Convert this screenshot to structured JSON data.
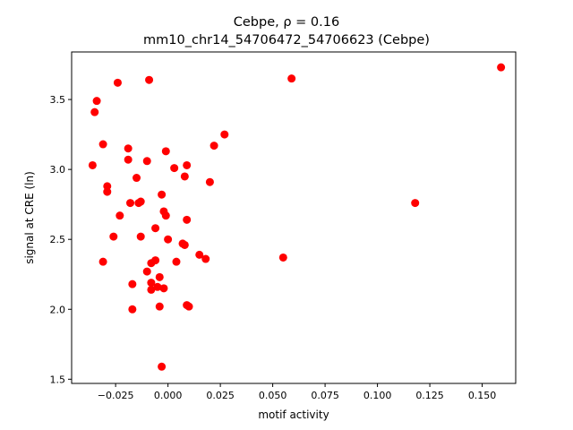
{
  "chart_data": {
    "type": "scatter",
    "title_line1": "Cebpe, ρ = 0.16",
    "title_line2": "mm10_chr14_54706472_54706623 (Cebpe)",
    "xlabel": "motif activity",
    "ylabel": "signal at CRE (ln)",
    "xlim": [
      -0.046,
      0.166
    ],
    "ylim": [
      1.47,
      3.84
    ],
    "xticks": [
      {
        "value": -0.025,
        "label": "−0.025"
      },
      {
        "value": 0.0,
        "label": "0.000"
      },
      {
        "value": 0.025,
        "label": "0.025"
      },
      {
        "value": 0.05,
        "label": "0.050"
      },
      {
        "value": 0.075,
        "label": "0.075"
      },
      {
        "value": 0.1,
        "label": "0.100"
      },
      {
        "value": 0.125,
        "label": "0.125"
      },
      {
        "value": 0.15,
        "label": "0.150"
      }
    ],
    "yticks": [
      {
        "value": 1.5,
        "label": "1.5"
      },
      {
        "value": 2.0,
        "label": "2.0"
      },
      {
        "value": 2.5,
        "label": "2.5"
      },
      {
        "value": 3.0,
        "label": "3.0"
      },
      {
        "value": 3.5,
        "label": "3.5"
      }
    ],
    "grid": false,
    "marker_color": "#ff0000",
    "points": [
      {
        "x": 0.159,
        "y": 3.73
      },
      {
        "x": 0.059,
        "y": 3.65
      },
      {
        "x": 0.118,
        "y": 2.76
      },
      {
        "x": 0.055,
        "y": 2.37
      },
      {
        "x": -0.034,
        "y": 3.49
      },
      {
        "x": -0.035,
        "y": 3.41
      },
      {
        "x": -0.024,
        "y": 3.62
      },
      {
        "x": -0.009,
        "y": 3.64
      },
      {
        "x": -0.031,
        "y": 3.18
      },
      {
        "x": -0.036,
        "y": 3.03
      },
      {
        "x": -0.019,
        "y": 3.15
      },
      {
        "x": -0.019,
        "y": 3.07
      },
      {
        "x": -0.01,
        "y": 3.06
      },
      {
        "x": -0.001,
        "y": 3.13
      },
      {
        "x": 0.003,
        "y": 3.01
      },
      {
        "x": 0.009,
        "y": 3.03
      },
      {
        "x": 0.022,
        "y": 3.17
      },
      {
        "x": 0.027,
        "y": 3.25
      },
      {
        "x": -0.029,
        "y": 2.88
      },
      {
        "x": -0.029,
        "y": 2.84
      },
      {
        "x": -0.015,
        "y": 2.94
      },
      {
        "x": 0.008,
        "y": 2.95
      },
      {
        "x": 0.02,
        "y": 2.91
      },
      {
        "x": -0.018,
        "y": 2.76
      },
      {
        "x": -0.014,
        "y": 2.76
      },
      {
        "x": -0.013,
        "y": 2.77
      },
      {
        "x": -0.003,
        "y": 2.82
      },
      {
        "x": -0.023,
        "y": 2.67
      },
      {
        "x": -0.002,
        "y": 2.7
      },
      {
        "x": -0.001,
        "y": 2.67
      },
      {
        "x": 0.009,
        "y": 2.64
      },
      {
        "x": -0.006,
        "y": 2.58
      },
      {
        "x": -0.026,
        "y": 2.52
      },
      {
        "x": -0.013,
        "y": 2.52
      },
      {
        "x": 0.0,
        "y": 2.5
      },
      {
        "x": 0.007,
        "y": 2.47
      },
      {
        "x": 0.008,
        "y": 2.46
      },
      {
        "x": 0.015,
        "y": 2.39
      },
      {
        "x": 0.018,
        "y": 2.36
      },
      {
        "x": -0.031,
        "y": 2.34
      },
      {
        "x": -0.006,
        "y": 2.35
      },
      {
        "x": -0.008,
        "y": 2.33
      },
      {
        "x": 0.004,
        "y": 2.34
      },
      {
        "x": -0.01,
        "y": 2.27
      },
      {
        "x": -0.004,
        "y": 2.23
      },
      {
        "x": -0.017,
        "y": 2.18
      },
      {
        "x": -0.008,
        "y": 2.19
      },
      {
        "x": -0.008,
        "y": 2.14
      },
      {
        "x": -0.005,
        "y": 2.16
      },
      {
        "x": -0.002,
        "y": 2.15
      },
      {
        "x": -0.017,
        "y": 2.0
      },
      {
        "x": -0.004,
        "y": 2.02
      },
      {
        "x": 0.009,
        "y": 2.03
      },
      {
        "x": 0.01,
        "y": 2.02
      },
      {
        "x": -0.003,
        "y": 1.59
      }
    ]
  }
}
